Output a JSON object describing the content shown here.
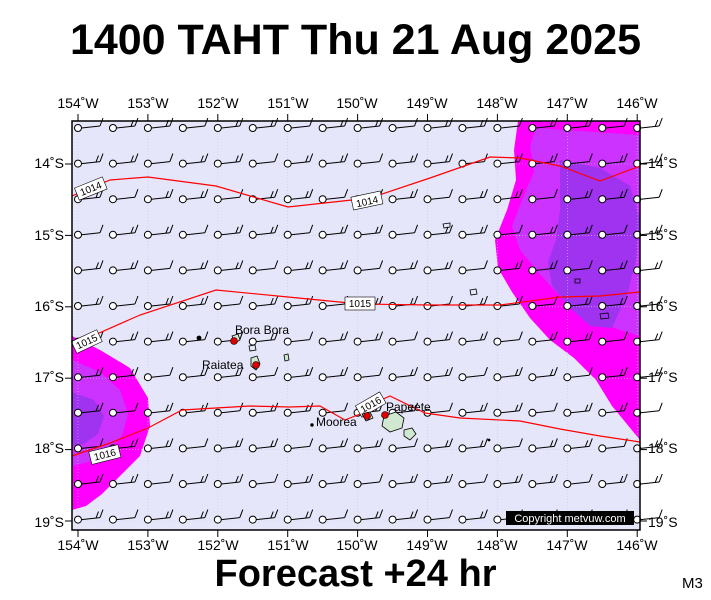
{
  "title": "1400 TAHT Thu 21 Aug 2025",
  "footer": "Forecast +24 hr",
  "model_code": "M3",
  "copyright": "Copyright metvuw.com",
  "axes": {
    "lon_labels": [
      "154˚W",
      "153˚W",
      "152˚W",
      "151˚W",
      "150˚W",
      "149˚W",
      "148˚W",
      "147˚W",
      "146˚W"
    ],
    "lat_labels": [
      "14˚S",
      "15˚S",
      "16˚S",
      "17˚S",
      "18˚S",
      "19˚S"
    ]
  },
  "isobars": [
    {
      "label": "1014",
      "label2": "1014"
    },
    {
      "label": "1015",
      "label2": "1015"
    },
    {
      "label": "1016",
      "label2": "1016"
    }
  ],
  "places": [
    "Bora Bora",
    "Raiatea",
    "Moorea",
    "Papeete"
  ],
  "colors": {
    "background": "#e6e6fa",
    "precip_light": "#ff00ff",
    "precip_mid": "#cc33ff",
    "precip_heavy": "#9f33f0",
    "isobar": "#ff0000",
    "land": "#cfe8cf"
  }
}
